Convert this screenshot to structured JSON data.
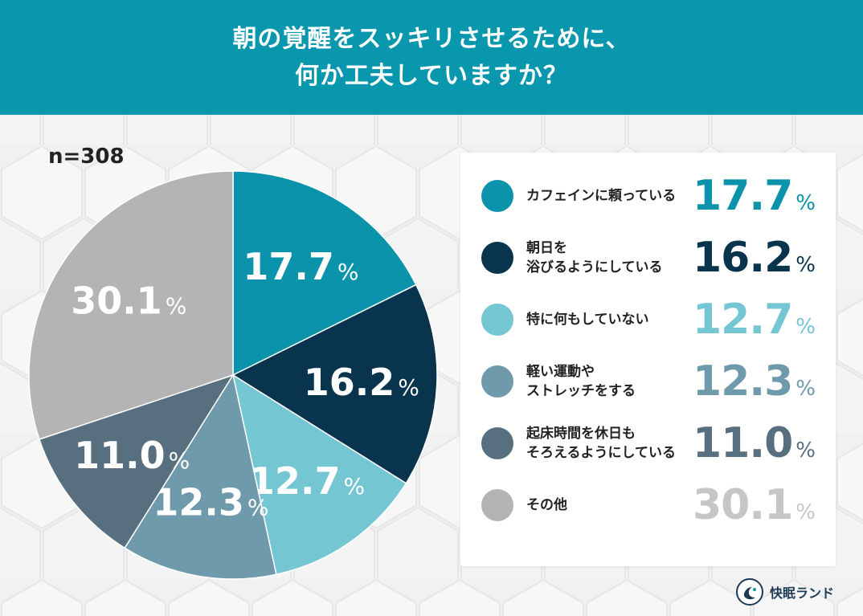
{
  "header": {
    "title_line1": "朝の覚醒をスッキリさせるために、",
    "title_line2": "何か工夫していますか？"
  },
  "n_label": "n=308",
  "percent_sign": "%",
  "brand_name": "快眠ランド",
  "chart_data": {
    "type": "pie",
    "total_respondents": 308,
    "categories": [
      "カフェインに頼っている",
      "朝日を\n浴びるようにしている",
      "特に何もしていない",
      "軽い運動や\nストレッチをする",
      "起床時間を休日も\nそろえるようにしている",
      "その他"
    ],
    "values": [
      17.7,
      16.2,
      12.7,
      12.3,
      11.0,
      30.1
    ],
    "value_labels": [
      "17.7",
      "16.2",
      "12.7",
      "12.3",
      "11.0",
      "30.1"
    ],
    "colors": [
      "#0a93ab",
      "#08344d",
      "#74c6d3",
      "#6f9aab",
      "#576f7e",
      "#b4b4b6"
    ],
    "legend_value_colors": [
      "#0a93ab",
      "#08344d",
      "#74c6d3",
      "#6f9aab",
      "#576f7e",
      "#c6c6c8"
    ],
    "legend_position": "right"
  }
}
